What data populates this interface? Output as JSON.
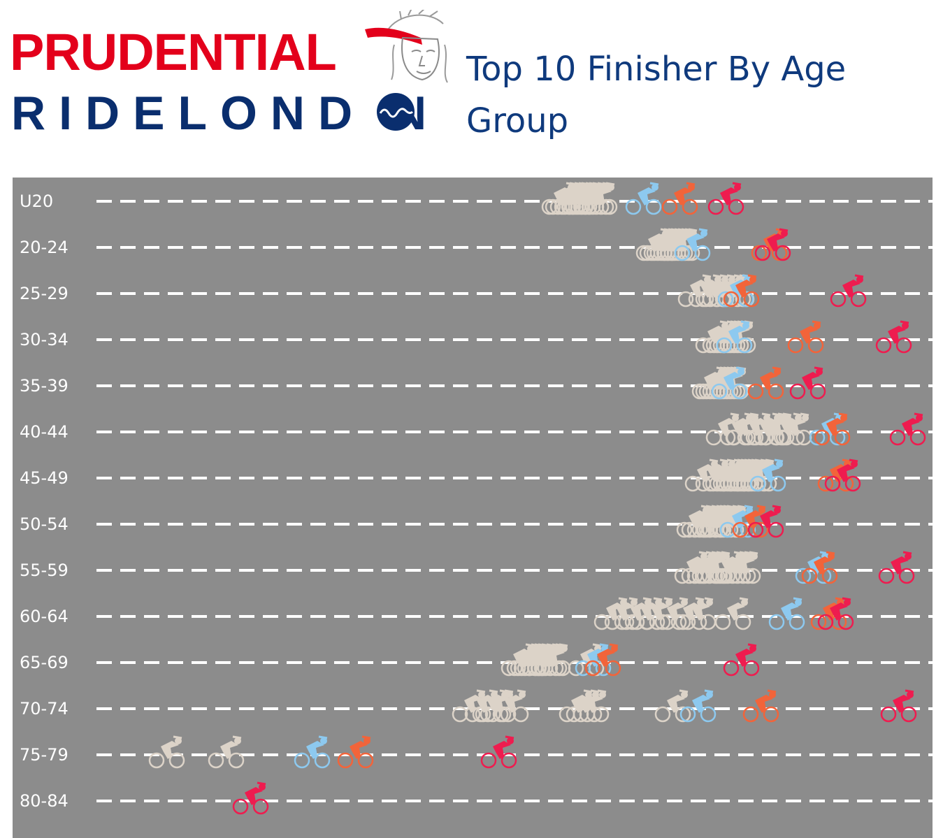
{
  "header": {
    "logo_line1": "PRUDENTIAL",
    "logo_line2": "RIDELOND N",
    "title": "Top 10 Finisher By Age Group"
  },
  "colors": {
    "background": "#8c8c8c",
    "others": "#dcd3c8",
    "third": "#8dc9ef",
    "second": "#f2643a",
    "first": "#ee1c4f",
    "title": "#0f3a7d"
  },
  "chart_data": {
    "type": "scatter",
    "title": "Top 10 Finisher By Age Group",
    "xlabel": "",
    "ylabel": "",
    "grid": "dashed row lines",
    "legend": "none",
    "marker": "cyclist-icon",
    "categories": [
      "U20",
      "20-24",
      "25-29",
      "30-34",
      "35-39",
      "40-44",
      "45-49",
      "50-54",
      "55-59",
      "60-64",
      "65-69",
      "70-74",
      "75-79",
      "80-84"
    ],
    "series": [
      {
        "role": "others",
        "values": [
          [
            800,
            805,
            812,
            818,
            822,
            828,
            833,
            838,
            845,
            852,
            857
          ],
          [
            935,
            940,
            946,
            950,
            955,
            960,
            965,
            970,
            975
          ],
          [
            995,
            1010,
            1020,
            1030,
            1040,
            1048,
            1053
          ],
          [
            1020,
            1030,
            1035,
            1040,
            1045,
            1050,
            1055
          ],
          [
            1015,
            1020,
            1025,
            1030,
            1035,
            1040,
            1045
          ],
          [
            1035,
            1055,
            1063,
            1080,
            1095,
            1103,
            1110,
            1125,
            1135
          ],
          [
            1005,
            1020,
            1030,
            1040,
            1045,
            1050,
            1055,
            1060,
            1065,
            1070,
            1078,
            1085
          ],
          [
            993,
            1000,
            1008,
            1015,
            1020,
            1025,
            1030,
            1038,
            1045
          ],
          [
            990,
            1000,
            1008,
            1015,
            1022,
            1040,
            1048,
            1055,
            1062
          ],
          [
            875,
            890,
            910,
            925,
            940,
            962,
            985,
            998,
            1048
          ],
          [
            742,
            750,
            755,
            760,
            765,
            772,
            780,
            785,
            790,
            838
          ],
          [
            672,
            690,
            705,
            712,
            730,
            825,
            835,
            845,
            962
          ],
          [
            238,
            323
          ],
          []
        ]
      },
      {
        "role": "third",
        "values": [
          920,
          990,
          1052,
          1050,
          1043,
          1183,
          1098,
          1055,
          1163,
          1125,
          848,
          998,
          446,
          null
        ]
      },
      {
        "role": "second",
        "values": [
          972,
          1100,
          1060,
          1152,
          1095,
          1190,
          1195,
          1073,
          1172,
          1185,
          862,
          1088,
          508,
          null
        ]
      },
      {
        "role": "first",
        "values": [
          1038,
          1105,
          1213,
          1278,
          1155,
          1298,
          1205,
          1095,
          1282,
          1195,
          1060,
          1285,
          713,
          358
        ]
      }
    ]
  }
}
